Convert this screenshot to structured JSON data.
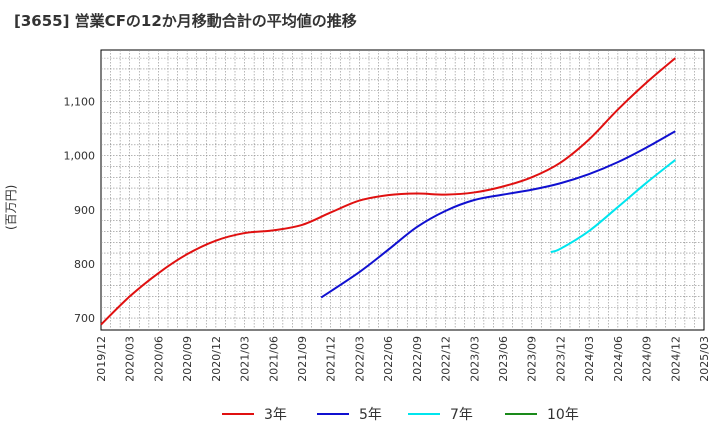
{
  "chart_data": {
    "type": "line",
    "title": "[3655]  営業CFの12か月移動合計の平均値の推移",
    "ylabel": "(百万円)",
    "xlabel": "",
    "ylim": [
      678,
      1195
    ],
    "y_ticks": [
      700,
      800,
      900,
      1000,
      1100
    ],
    "y_tick_labels": [
      "700",
      "800",
      "900",
      "1,000",
      "1,100"
    ],
    "x_ticks": [
      "2019/12",
      "2020/03",
      "2020/06",
      "2020/09",
      "2020/12",
      "2021/03",
      "2021/06",
      "2021/09",
      "2021/12",
      "2022/03",
      "2022/06",
      "2022/09",
      "2022/12",
      "2023/03",
      "2023/06",
      "2023/09",
      "2023/12",
      "2024/03",
      "2024/06",
      "2024/09",
      "2024/12",
      "2025/03"
    ],
    "grid": true,
    "legend_position": "bottom",
    "series": [
      {
        "name": "3年",
        "color": "#e01010",
        "x": [
          "2019/12",
          "2020/03",
          "2020/06",
          "2020/09",
          "2020/12",
          "2021/03",
          "2021/06",
          "2021/09",
          "2021/12",
          "2022/03",
          "2022/06",
          "2022/09",
          "2022/12",
          "2023/03",
          "2023/06",
          "2023/09",
          "2023/12",
          "2024/03",
          "2024/06",
          "2024/09",
          "2024/12"
        ],
        "values": [
          688,
          740,
          783,
          818,
          843,
          857,
          862,
          872,
          895,
          917,
          927,
          930,
          928,
          932,
          943,
          960,
          987,
          1030,
          1085,
          1135,
          1180
        ]
      },
      {
        "name": "5年",
        "color": "#1010d0",
        "x": [
          "2021/11",
          "2022/03",
          "2022/06",
          "2022/09",
          "2022/12",
          "2023/03",
          "2023/06",
          "2023/09",
          "2023/12",
          "2024/03",
          "2024/06",
          "2024/09",
          "2024/12"
        ],
        "values": [
          738,
          785,
          826,
          868,
          898,
          918,
          928,
          937,
          949,
          966,
          988,
          1015,
          1045
        ]
      },
      {
        "name": "7年",
        "color": "#00e5ee",
        "x": [
          "2023/11",
          "2023/12",
          "2024/03",
          "2024/06",
          "2024/09",
          "2024/12"
        ],
        "values": [
          822,
          828,
          861,
          905,
          950,
          992
        ]
      },
      {
        "name": "10年",
        "color": "#1a8a1a",
        "x": [],
        "values": []
      }
    ]
  }
}
